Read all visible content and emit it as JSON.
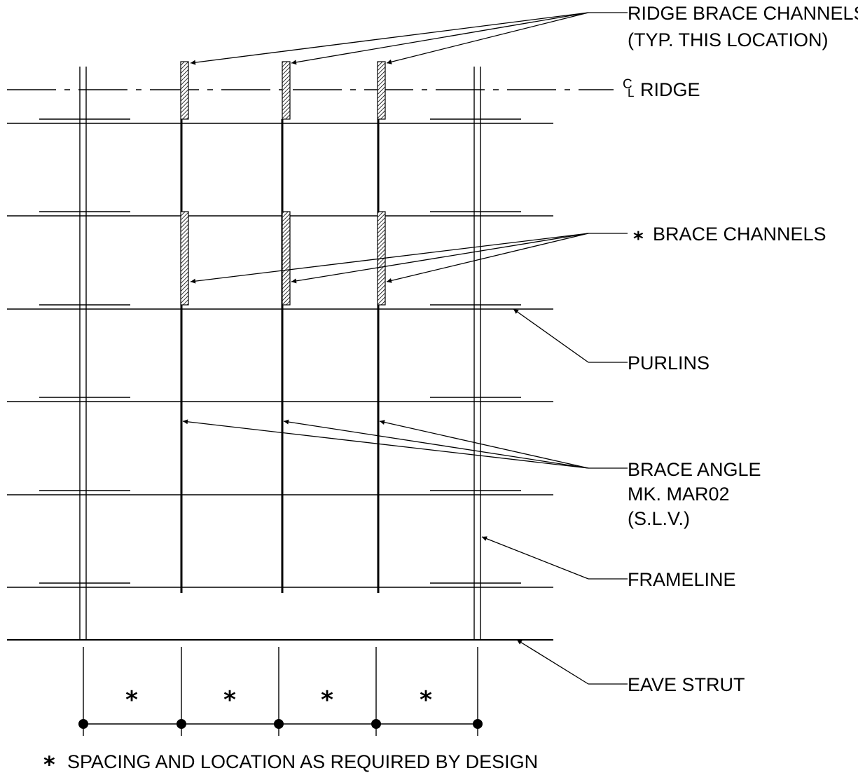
{
  "callouts": {
    "ridge_brace": [
      "RIDGE BRACE CHANNELS",
      "(TYP. THIS LOCATION)"
    ],
    "ridge": "RIDGE",
    "brace_channels": "BRACE CHANNELS",
    "brace_channels_marker": "*",
    "purlins": "PURLINS",
    "brace_angle": [
      "BRACE ANGLE",
      "MK. MAR02",
      "(S.L.V.)"
    ],
    "frameline": "FRAMELINE",
    "eave_strut": "EAVE STRUT"
  },
  "centerline_symbol": {
    "top": "C",
    "bottom": "L"
  },
  "spacing_markers": [
    "*",
    "*",
    "*",
    "*"
  ],
  "footnote": {
    "marker": "*",
    "text": "SPACING AND LOCATION AS REQUIRED BY DESIGN"
  }
}
